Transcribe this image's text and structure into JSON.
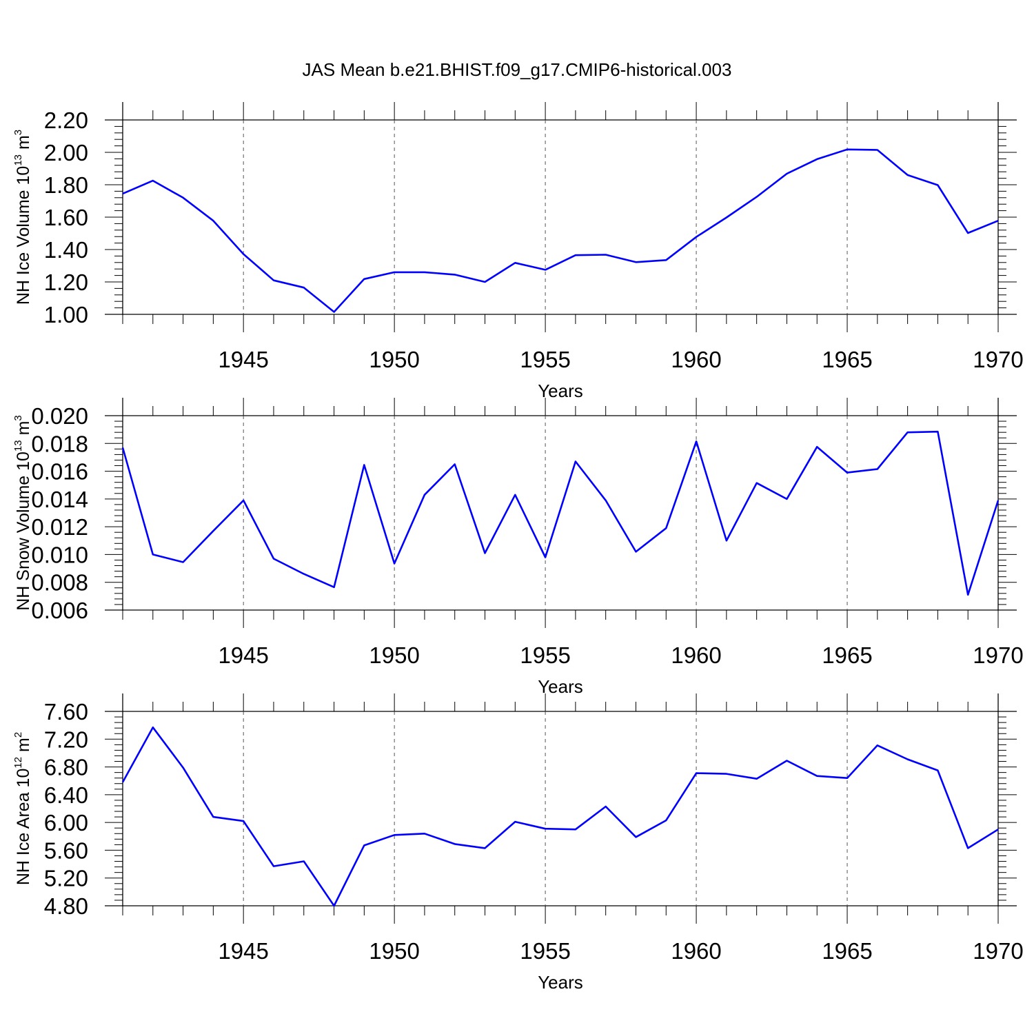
{
  "title": "JAS Mean b.e21.BHIST.f09_g17.CMIP6-historical.003",
  "chart_data": [
    {
      "type": "line",
      "ylabel": {
        "text": "NH Ice Volume 10",
        "exp": "13",
        "unit": " m",
        "unit_exp": "3"
      },
      "xlabel": "Years",
      "xlim": [
        1941,
        1970
      ],
      "ylim": [
        1.0,
        2.2
      ],
      "y_ticks": [
        "1.00",
        "1.20",
        "1.40",
        "1.60",
        "1.80",
        "2.00",
        "2.20"
      ],
      "x_ticks": [
        "1945",
        "1950",
        "1955",
        "1960",
        "1965",
        "1970"
      ],
      "grid_x": true,
      "line_color": "#0000ff",
      "x": [
        1941,
        1942,
        1943,
        1944,
        1945,
        1946,
        1947,
        1948,
        1949,
        1950,
        1951,
        1952,
        1953,
        1954,
        1955,
        1956,
        1957,
        1958,
        1959,
        1960,
        1961,
        1962,
        1963,
        1964,
        1965,
        1966,
        1967,
        1968,
        1969,
        1970
      ],
      "values": [
        1.745,
        1.825,
        1.72,
        1.578,
        1.372,
        1.21,
        1.165,
        1.015,
        1.218,
        1.26,
        1.26,
        1.245,
        1.2,
        1.318,
        1.275,
        1.365,
        1.368,
        1.322,
        1.335,
        1.478,
        1.598,
        1.725,
        1.868,
        1.958,
        2.018,
        2.015,
        1.86,
        1.798,
        1.502,
        1.578
      ]
    },
    {
      "type": "line",
      "ylabel": {
        "text": "NH Snow Volume 10",
        "exp": "13",
        "unit": " m",
        "unit_exp": "3"
      },
      "xlabel": "Years",
      "xlim": [
        1941,
        1970
      ],
      "ylim": [
        0.006,
        0.02
      ],
      "y_ticks": [
        "0.006",
        "0.008",
        "0.010",
        "0.012",
        "0.014",
        "0.016",
        "0.018",
        "0.020"
      ],
      "x_ticks": [
        "1945",
        "1950",
        "1955",
        "1960",
        "1965",
        "1970"
      ],
      "grid_x": true,
      "line_color": "#0000ff",
      "x": [
        1941,
        1942,
        1943,
        1944,
        1945,
        1946,
        1947,
        1948,
        1949,
        1950,
        1951,
        1952,
        1953,
        1954,
        1955,
        1956,
        1957,
        1958,
        1959,
        1960,
        1961,
        1962,
        1963,
        1964,
        1965,
        1966,
        1967,
        1968,
        1969,
        1970
      ],
      "values": [
        0.0177,
        0.01,
        0.00945,
        0.0117,
        0.0139,
        0.0097,
        0.0086,
        0.00765,
        0.01645,
        0.00935,
        0.0143,
        0.0165,
        0.0101,
        0.0143,
        0.0098,
        0.0167,
        0.0139,
        0.0102,
        0.0119,
        0.01815,
        0.011,
        0.01515,
        0.014,
        0.01775,
        0.0159,
        0.01615,
        0.0188,
        0.01885,
        0.0071,
        0.0139
      ]
    },
    {
      "type": "line",
      "ylabel": {
        "text": "NH Ice Area 10",
        "exp": "12",
        "unit": " m",
        "unit_exp": "2"
      },
      "xlabel": "Years",
      "xlim": [
        1941,
        1970
      ],
      "ylim": [
        4.8,
        7.6
      ],
      "y_ticks": [
        "4.80",
        "5.20",
        "5.60",
        "6.00",
        "6.40",
        "6.80",
        "7.20",
        "7.60"
      ],
      "x_ticks": [
        "1945",
        "1950",
        "1955",
        "1960",
        "1965",
        "1970"
      ],
      "grid_x": true,
      "line_color": "#0000ff",
      "x": [
        1941,
        1942,
        1943,
        1944,
        1945,
        1946,
        1947,
        1948,
        1949,
        1950,
        1951,
        1952,
        1953,
        1954,
        1955,
        1956,
        1957,
        1958,
        1959,
        1960,
        1961,
        1962,
        1963,
        1964,
        1965,
        1966,
        1967,
        1968,
        1969,
        1970
      ],
      "values": [
        6.58,
        7.37,
        6.79,
        6.08,
        6.02,
        5.37,
        5.44,
        4.8,
        5.67,
        5.82,
        5.84,
        5.69,
        5.63,
        6.01,
        5.91,
        5.9,
        6.23,
        5.79,
        6.03,
        6.71,
        6.7,
        6.63,
        6.89,
        6.67,
        6.64,
        7.11,
        6.91,
        6.75,
        5.63,
        5.9
      ]
    }
  ]
}
